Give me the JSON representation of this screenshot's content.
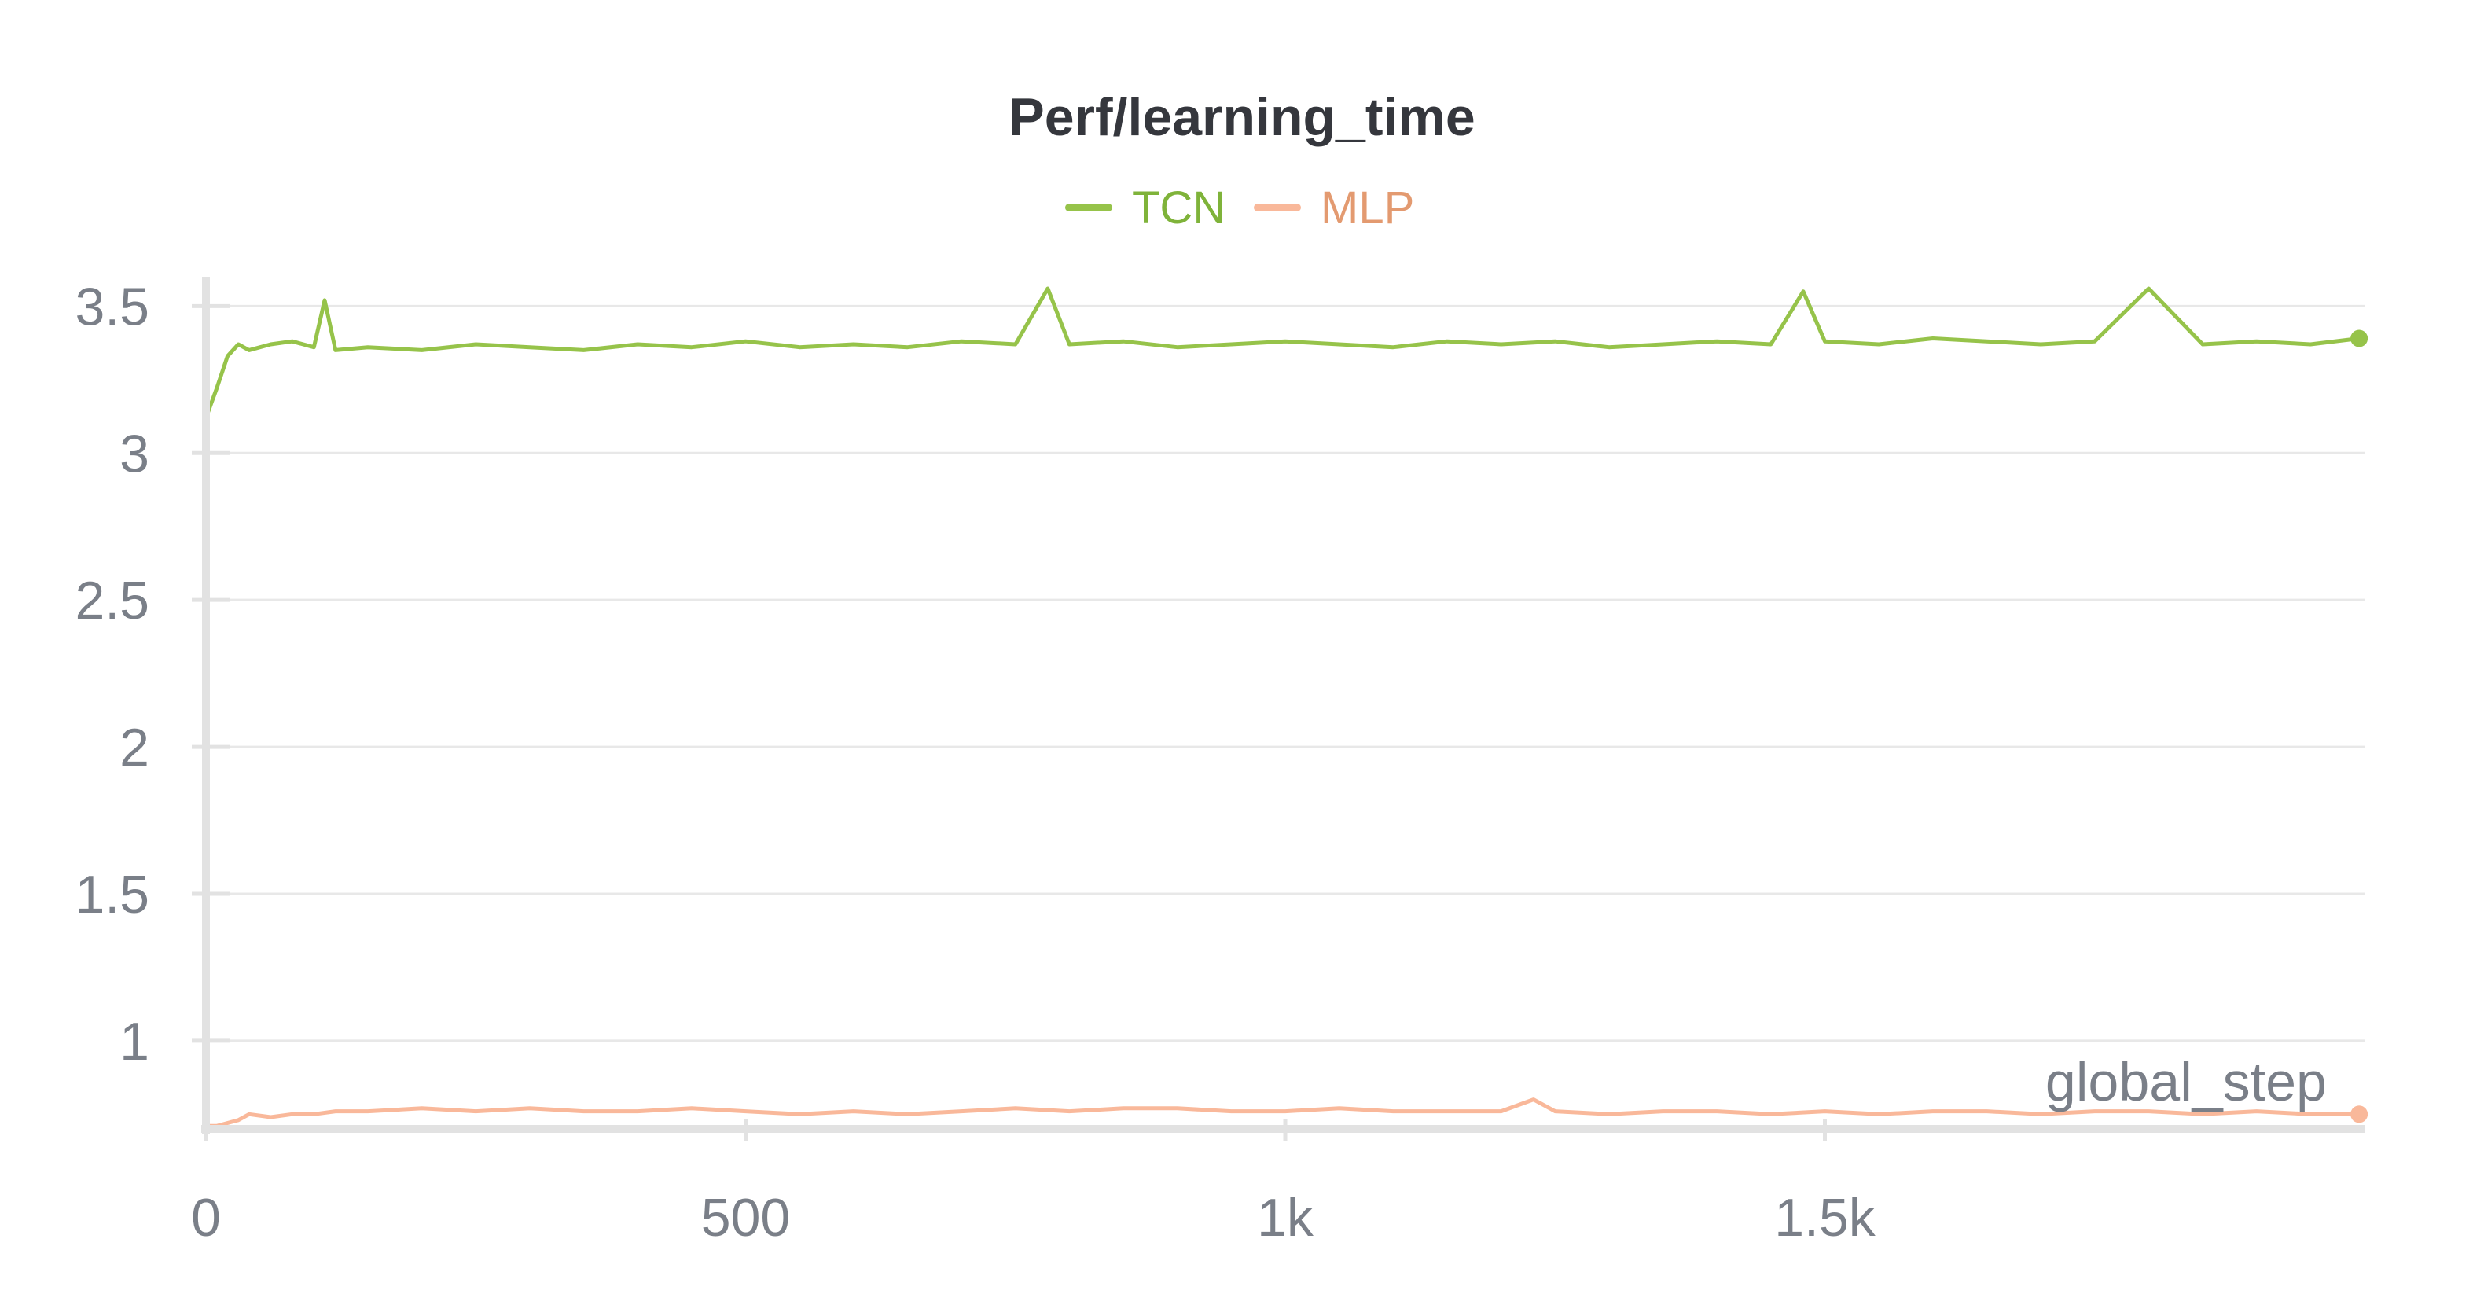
{
  "chart_data": {
    "type": "line",
    "title": "Perf/learning_time",
    "xlabel": "global_step",
    "ylabel": "",
    "xlim": [
      0,
      2000
    ],
    "ylim": [
      0.7,
      3.6
    ],
    "xticks": [
      0,
      500,
      1000,
      1500
    ],
    "xtick_labels": [
      "0",
      "500",
      "1k",
      "1.5k"
    ],
    "yticks": [
      1,
      1.5,
      2,
      2.5,
      3,
      3.5
    ],
    "ytick_labels": [
      "1",
      "1.5",
      "2",
      "2.5",
      "3",
      "3.5"
    ],
    "grid": true,
    "legend_position": "top-center",
    "series": [
      {
        "name": "TCN",
        "color": "#96c34a",
        "x": [
          0,
          10,
          20,
          30,
          40,
          60,
          80,
          100,
          110,
          120,
          150,
          200,
          250,
          300,
          350,
          400,
          450,
          500,
          550,
          600,
          650,
          700,
          750,
          780,
          800,
          850,
          900,
          950,
          1000,
          1050,
          1100,
          1150,
          1200,
          1250,
          1300,
          1350,
          1400,
          1450,
          1480,
          1500,
          1550,
          1600,
          1650,
          1700,
          1750,
          1800,
          1850,
          1900,
          1950,
          1995
        ],
        "values": [
          3.12,
          3.22,
          3.33,
          3.37,
          3.35,
          3.37,
          3.38,
          3.36,
          3.52,
          3.35,
          3.36,
          3.35,
          3.37,
          3.36,
          3.35,
          3.37,
          3.36,
          3.38,
          3.36,
          3.37,
          3.36,
          3.38,
          3.37,
          3.56,
          3.37,
          3.38,
          3.36,
          3.37,
          3.38,
          3.37,
          3.36,
          3.38,
          3.37,
          3.38,
          3.36,
          3.37,
          3.38,
          3.37,
          3.55,
          3.38,
          3.37,
          3.39,
          3.38,
          3.37,
          3.38,
          3.56,
          3.37,
          3.38,
          3.37,
          3.39
        ]
      },
      {
        "name": "MLP",
        "color": "#f9b89a",
        "x": [
          0,
          10,
          20,
          30,
          40,
          60,
          80,
          100,
          120,
          150,
          200,
          250,
          300,
          350,
          400,
          450,
          500,
          550,
          600,
          650,
          700,
          750,
          800,
          850,
          900,
          950,
          1000,
          1050,
          1100,
          1150,
          1200,
          1230,
          1250,
          1300,
          1350,
          1400,
          1450,
          1500,
          1550,
          1600,
          1650,
          1700,
          1750,
          1800,
          1850,
          1900,
          1950,
          1995
        ],
        "values": [
          0.71,
          0.71,
          0.72,
          0.73,
          0.75,
          0.74,
          0.75,
          0.75,
          0.76,
          0.76,
          0.77,
          0.76,
          0.77,
          0.76,
          0.76,
          0.77,
          0.76,
          0.75,
          0.76,
          0.75,
          0.76,
          0.77,
          0.76,
          0.77,
          0.77,
          0.76,
          0.76,
          0.77,
          0.76,
          0.76,
          0.76,
          0.8,
          0.76,
          0.75,
          0.76,
          0.76,
          0.75,
          0.76,
          0.75,
          0.76,
          0.76,
          0.75,
          0.76,
          0.76,
          0.75,
          0.76,
          0.75,
          0.75
        ]
      }
    ]
  }
}
